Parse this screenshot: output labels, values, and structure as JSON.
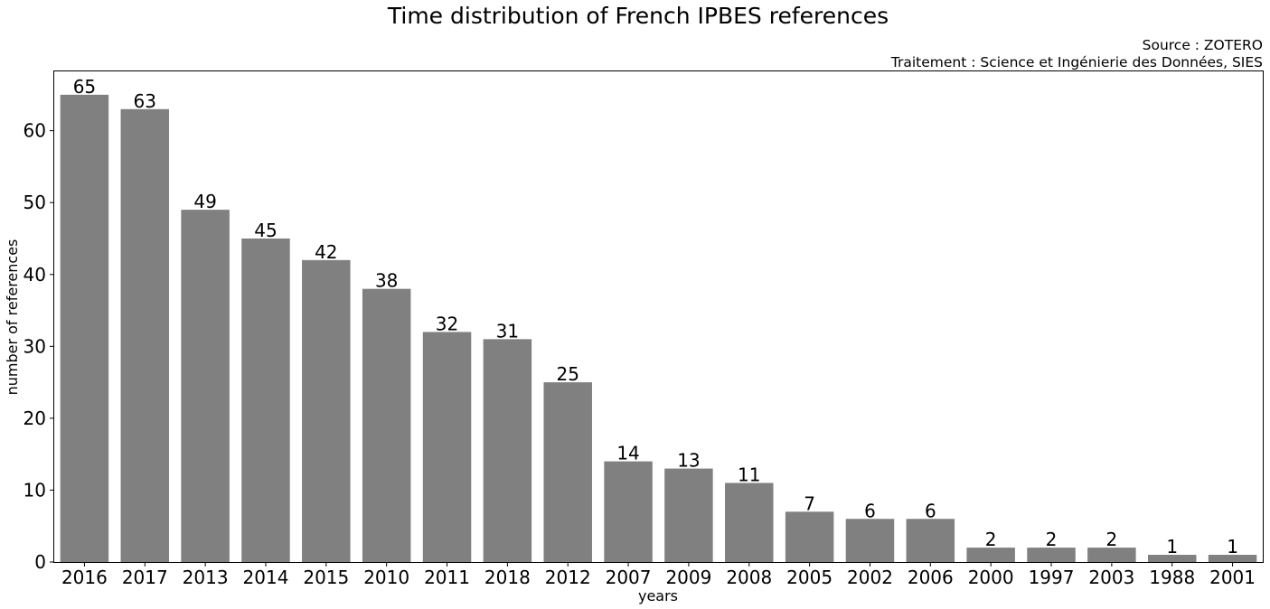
{
  "chart_data": {
    "type": "bar",
    "title": "Time distribution of French IPBES references",
    "source_line": "Source : ZOTERO",
    "treatment_line": "Traitement : Science et Ingénierie des Données, SIES",
    "xlabel": "years",
    "ylabel": "number of references",
    "categories": [
      "2016",
      "2017",
      "2013",
      "2014",
      "2015",
      "2010",
      "2011",
      "2018",
      "2012",
      "2007",
      "2009",
      "2008",
      "2005",
      "2002",
      "2006",
      "2000",
      "1997",
      "2003",
      "1988",
      "2001"
    ],
    "values": [
      65,
      63,
      49,
      45,
      42,
      38,
      32,
      31,
      25,
      14,
      13,
      11,
      7,
      6,
      6,
      2,
      2,
      2,
      1,
      1
    ],
    "ylim": [
      0,
      68.25
    ],
    "yticks": [
      0,
      10,
      20,
      30,
      40,
      50,
      60
    ],
    "bar_color": "#808080",
    "grid": false,
    "data_labels": true
  }
}
